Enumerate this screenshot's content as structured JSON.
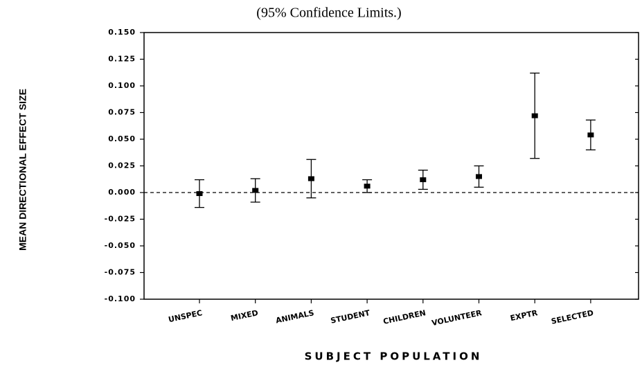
{
  "chart_data": {
    "type": "errorbar",
    "title": "(95% Confidence Limits.)",
    "y_label": "MEAN DIRECTIONAL EFFECT SIZE",
    "x_label": "SUBJECT POPULATION",
    "categories": [
      "UNSPEC",
      "MIXED",
      "ANIMALS",
      "STUDENT",
      "CHILDREN",
      "VOLUNTEER",
      "EXPTR",
      "SELECTED"
    ],
    "values": [
      -0.001,
      0.002,
      0.013,
      0.006,
      0.012,
      0.015,
      0.072,
      0.054
    ],
    "errors": [
      0.013,
      0.011,
      0.018,
      0.006,
      0.009,
      0.01,
      0.04,
      0.014
    ],
    "color": "#000000",
    "ylim": [
      -0.1,
      0.15
    ],
    "yticks": [
      {
        "value": 0.15,
        "label": "0.150"
      },
      {
        "value": 0.125,
        "label": "0.125"
      },
      {
        "value": 0.1,
        "label": "0.100"
      },
      {
        "value": 0.075,
        "label": "0.075"
      },
      {
        "value": 0.05,
        "label": "0.050"
      },
      {
        "value": 0.025,
        "label": "0.025"
      },
      {
        "value": 0,
        "label": "0.000"
      },
      {
        "value": -0.025,
        "label": "-0.025"
      },
      {
        "value": -0.05,
        "label": "-0.050"
      },
      {
        "value": -0.075,
        "label": "-0.075"
      },
      {
        "value": -0.1,
        "label": "-0.100"
      }
    ]
  }
}
